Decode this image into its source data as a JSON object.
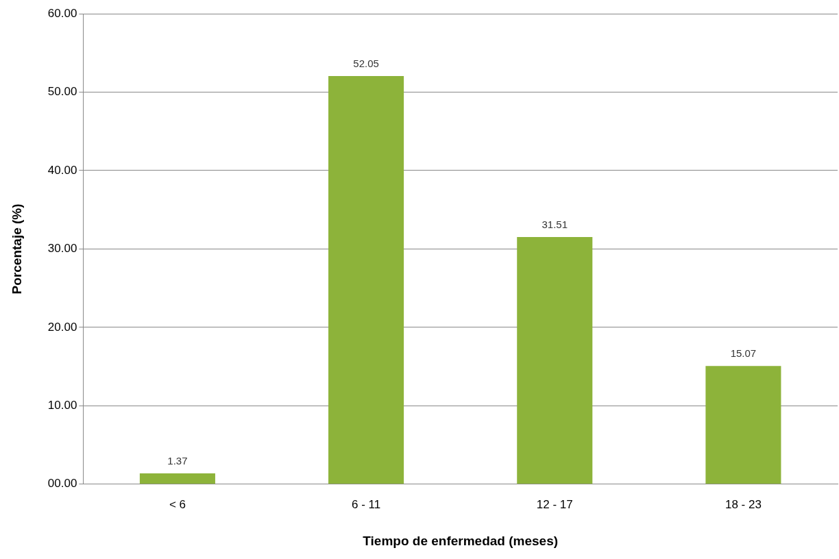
{
  "chart_data": {
    "type": "bar",
    "xlabel": "Tiempo de enfermedad (meses)",
    "ylabel": "Porcentaje (%)",
    "categories": [
      "< 6",
      "6 - 11",
      "12 - 17",
      "18 - 23"
    ],
    "values": [
      1.37,
      52.05,
      31.51,
      15.07
    ],
    "color": "#8db33a",
    "ylim": [
      0,
      60
    ],
    "yticks": [
      {
        "value": 0,
        "label": "00.00"
      },
      {
        "value": 10,
        "label": "10.00"
      },
      {
        "value": 20,
        "label": "20.00"
      },
      {
        "value": 30,
        "label": "30.00"
      },
      {
        "value": 40,
        "label": "40.00"
      },
      {
        "value": 50,
        "label": "50.00"
      },
      {
        "value": 60,
        "label": "60.00"
      }
    ],
    "grid": "y",
    "data_labels": true
  }
}
